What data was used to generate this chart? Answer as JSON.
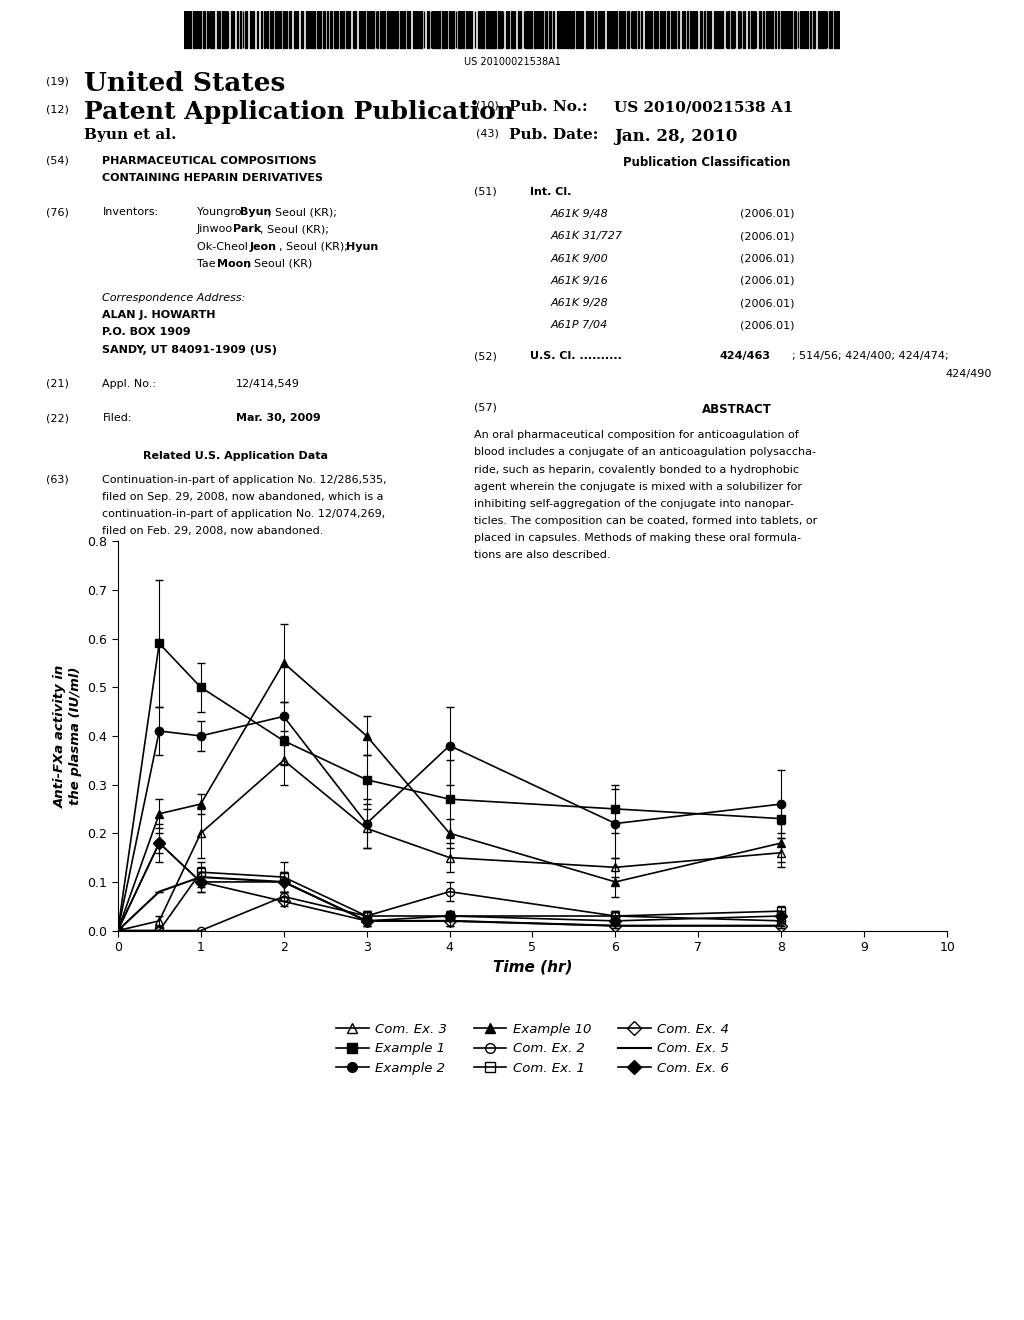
{
  "background_color": "#ffffff",
  "barcode_text": "US 20100021538A1",
  "chart": {
    "xlabel": "Time (hr)",
    "ylabel": "Anti-FXa activity in\nthe plasma (IU/ml)",
    "xlim": [
      0,
      10
    ],
    "ylim": [
      0,
      0.8
    ],
    "xticks": [
      0,
      1,
      2,
      3,
      4,
      5,
      6,
      7,
      8,
      9,
      10
    ],
    "yticks": [
      0.0,
      0.1,
      0.2,
      0.3,
      0.4,
      0.5,
      0.6,
      0.7,
      0.8
    ],
    "series": {
      "Com_Ex_3": {
        "label": "Com. Ex. 3",
        "marker": "^",
        "fillstyle": "none",
        "color": "#000000",
        "linewidth": 1.2,
        "x": [
          0,
          0.5,
          1,
          2,
          3,
          4,
          6,
          8
        ],
        "y": [
          0.0,
          0.02,
          0.2,
          0.35,
          0.21,
          0.15,
          0.13,
          0.16
        ],
        "yerr": [
          0.0,
          0.01,
          0.05,
          0.05,
          0.04,
          0.03,
          0.02,
          0.03
        ]
      },
      "Example_1": {
        "label": "Example 1",
        "marker": "s",
        "fillstyle": "full",
        "color": "#000000",
        "linewidth": 1.2,
        "x": [
          0,
          0.5,
          1,
          2,
          3,
          4,
          6,
          8
        ],
        "y": [
          0.0,
          0.59,
          0.5,
          0.39,
          0.31,
          0.27,
          0.25,
          0.23
        ],
        "yerr": [
          0.0,
          0.13,
          0.05,
          0.05,
          0.05,
          0.08,
          0.05,
          0.03
        ]
      },
      "Example_2": {
        "label": "Example 2",
        "marker": "o",
        "fillstyle": "full",
        "color": "#000000",
        "linewidth": 1.2,
        "x": [
          0,
          0.5,
          1,
          2,
          3,
          4,
          6,
          8
        ],
        "y": [
          0.0,
          0.41,
          0.4,
          0.44,
          0.22,
          0.38,
          0.22,
          0.26
        ],
        "yerr": [
          0.0,
          0.05,
          0.03,
          0.03,
          0.05,
          0.08,
          0.07,
          0.07
        ]
      },
      "Example_10": {
        "label": "Example 10",
        "marker": "^",
        "fillstyle": "full",
        "color": "#000000",
        "linewidth": 1.2,
        "x": [
          0,
          0.5,
          1,
          2,
          3,
          4,
          6,
          8
        ],
        "y": [
          0.0,
          0.24,
          0.26,
          0.55,
          0.4,
          0.2,
          0.1,
          0.18
        ],
        "yerr": [
          0.0,
          0.03,
          0.02,
          0.08,
          0.04,
          0.03,
          0.03,
          0.04
        ]
      },
      "Com_Ex_2": {
        "label": "Com. Ex. 2",
        "marker": "o",
        "fillstyle": "none",
        "color": "#000000",
        "linewidth": 1.2,
        "x": [
          0,
          0.5,
          1,
          2,
          3,
          4,
          6,
          8
        ],
        "y": [
          0.0,
          0.0,
          0.0,
          0.07,
          0.03,
          0.08,
          0.03,
          0.02
        ],
        "yerr": [
          0.0,
          0.0,
          0.0,
          0.01,
          0.01,
          0.02,
          0.01,
          0.01
        ]
      },
      "Com_Ex_1": {
        "label": "Com. Ex. 1",
        "marker": "s",
        "fillstyle": "none",
        "color": "#000000",
        "linewidth": 1.2,
        "x": [
          0,
          0.5,
          1,
          2,
          3,
          4,
          6,
          8
        ],
        "y": [
          0.0,
          0.0,
          0.12,
          0.11,
          0.03,
          0.03,
          0.03,
          0.04
        ],
        "yerr": [
          0.0,
          0.0,
          0.02,
          0.03,
          0.01,
          0.01,
          0.01,
          0.01
        ]
      },
      "Com_Ex_4": {
        "label": "Com. Ex. 4",
        "marker": "D",
        "fillstyle": "none",
        "color": "#000000",
        "linewidth": 1.2,
        "x": [
          0,
          0.5,
          1,
          2,
          3,
          4,
          6,
          8
        ],
        "y": [
          0.0,
          0.18,
          0.1,
          0.06,
          0.02,
          0.02,
          0.01,
          0.01
        ],
        "yerr": [
          0.0,
          0.04,
          0.02,
          0.01,
          0.01,
          0.01,
          0.005,
          0.005
        ]
      },
      "Com_Ex_5": {
        "label": "Com. Ex. 5",
        "marker": "None",
        "fillstyle": "full",
        "color": "#000000",
        "linewidth": 1.5,
        "x": [
          0,
          0.5,
          1,
          2,
          3,
          4,
          6,
          8
        ],
        "y": [
          0.0,
          0.08,
          0.11,
          0.1,
          0.02,
          0.02,
          0.01,
          0.01
        ],
        "yerr": [
          0.0,
          0.0,
          0.02,
          0.02,
          0.01,
          0.01,
          0.005,
          0.005
        ]
      },
      "Com_Ex_6": {
        "label": "Com. Ex. 6",
        "marker": "D",
        "fillstyle": "full",
        "color": "#000000",
        "linewidth": 1.2,
        "x": [
          0,
          0.5,
          1,
          2,
          3,
          4,
          6,
          8
        ],
        "y": [
          0.0,
          0.18,
          0.1,
          0.1,
          0.02,
          0.03,
          0.02,
          0.03
        ],
        "yerr": [
          0.0,
          0.02,
          0.02,
          0.02,
          0.01,
          0.01,
          0.005,
          0.01
        ]
      }
    },
    "legend_order": [
      "Com_Ex_3",
      "Example_1",
      "Example_2",
      "Example_10",
      "Com_Ex_2",
      "Com_Ex_1",
      "Com_Ex_4",
      "Com_Ex_5",
      "Com_Ex_6"
    ]
  }
}
